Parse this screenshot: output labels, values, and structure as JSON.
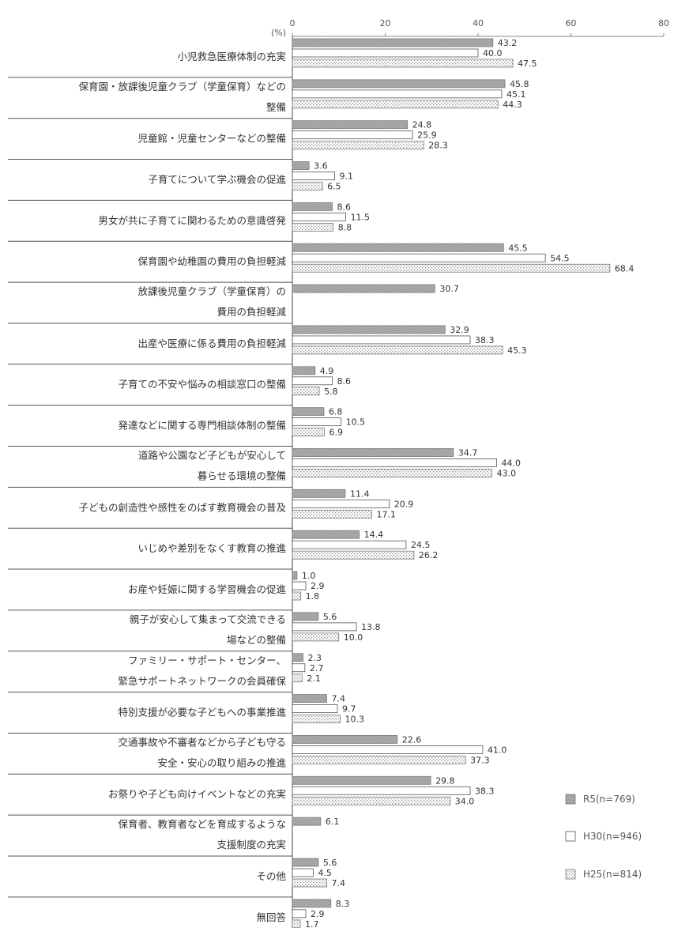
{
  "chart_data": {
    "type": "bar",
    "orientation": "horizontal",
    "unit_label": "(%)",
    "xlim": [
      0,
      80
    ],
    "xticks": [
      0,
      20,
      40,
      60,
      80
    ],
    "grid": false,
    "legend_position": "right",
    "categories": [
      [
        "小児救急医療体制の充実"
      ],
      [
        "保育園・放課後児童クラブ（学童保育）などの",
        "整備"
      ],
      [
        "児童館・児童センターなどの整備"
      ],
      [
        "子育てについて学ぶ機会の促進"
      ],
      [
        "男女が共に子育てに関わるための意識啓発"
      ],
      [
        "保育園や幼稚園の費用の負担軽減"
      ],
      [
        "放課後児童クラブ（学童保育）の",
        "費用の負担軽減"
      ],
      [
        "出産や医療に係る費用の負担軽減"
      ],
      [
        "子育ての不安や悩みの相談窓口の整備"
      ],
      [
        "発達などに関する専門相談体制の整備"
      ],
      [
        "道路や公園など子どもが安心して",
        "暮らせる環境の整備"
      ],
      [
        "子どもの創造性や感性をのばす教育機会の普及"
      ],
      [
        "いじめや差別をなくす教育の推進"
      ],
      [
        "お産や妊娠に関する学習機会の促進"
      ],
      [
        "親子が安心して集まって交流できる",
        "場などの整備"
      ],
      [
        "ファミリー・サポート・センター、",
        "緊急サポートネットワークの会員確保"
      ],
      [
        "特別支援が必要な子どもへの事業推進"
      ],
      [
        "交通事故や不審者などから子ども守る",
        "安全・安心の取り組みの推進"
      ],
      [
        "お祭りや子ども向けイベントなどの充実"
      ],
      [
        "保育者、教育者などを育成するような",
        "支援制度の充実"
      ],
      [
        "その他"
      ],
      [
        "無回答"
      ]
    ],
    "series": [
      {
        "name": "R5(n=769)",
        "pattern": "diagonal-gray",
        "color": "#a6a6a6",
        "values": [
          43.2,
          45.8,
          24.8,
          3.6,
          8.6,
          45.5,
          30.7,
          32.9,
          4.9,
          6.8,
          34.7,
          11.4,
          14.4,
          1.0,
          5.6,
          2.3,
          7.4,
          22.6,
          29.8,
          6.1,
          5.6,
          8.3
        ],
        "labels": [
          "43.2",
          "45.8",
          "24.8",
          "3.6",
          "8.6",
          "45.5",
          "30.7",
          "32.9",
          "4.9",
          "6.8",
          "34.7",
          "11.4",
          "14.4",
          "1.0",
          "5.6",
          "2.3",
          "7.4",
          "22.6",
          "29.8",
          "6.1",
          "5.6",
          "8.3"
        ]
      },
      {
        "name": "H30(n=946)",
        "pattern": "white",
        "color": "#ffffff",
        "values": [
          40.0,
          45.1,
          25.9,
          9.1,
          11.5,
          54.5,
          null,
          38.3,
          8.6,
          10.5,
          44.0,
          20.9,
          24.5,
          2.9,
          13.8,
          2.7,
          9.7,
          41.0,
          38.3,
          null,
          4.5,
          2.9
        ],
        "labels": [
          "40.0",
          "45.1",
          "25.9",
          "9.1",
          "11.5",
          "54.5",
          "",
          "38.3",
          "8.6",
          "10.5",
          "44.0",
          "20.9",
          "24.5",
          "2.9",
          "13.8",
          "2.7",
          "9.7",
          "41.0",
          "38.3",
          "",
          "4.5",
          "2.9"
        ]
      },
      {
        "name": "H25(n=814)",
        "pattern": "dotted",
        "color": "#e6e6e6",
        "values": [
          47.5,
          44.3,
          28.3,
          6.5,
          8.8,
          68.4,
          null,
          45.3,
          5.8,
          6.9,
          43.0,
          17.1,
          26.2,
          1.8,
          10.0,
          2.1,
          10.3,
          37.3,
          34.0,
          null,
          7.4,
          1.7
        ],
        "labels": [
          "47.5",
          "44.3",
          "28.3",
          "6.5",
          "8.8",
          "68.4",
          "",
          "45.3",
          "5.8",
          "6.9",
          "43.0",
          "17.1",
          "26.2",
          "1.8",
          "10.0",
          "2.1",
          "10.3",
          "37.3",
          "34.0",
          "",
          "7.4",
          "1.7"
        ]
      }
    ]
  }
}
